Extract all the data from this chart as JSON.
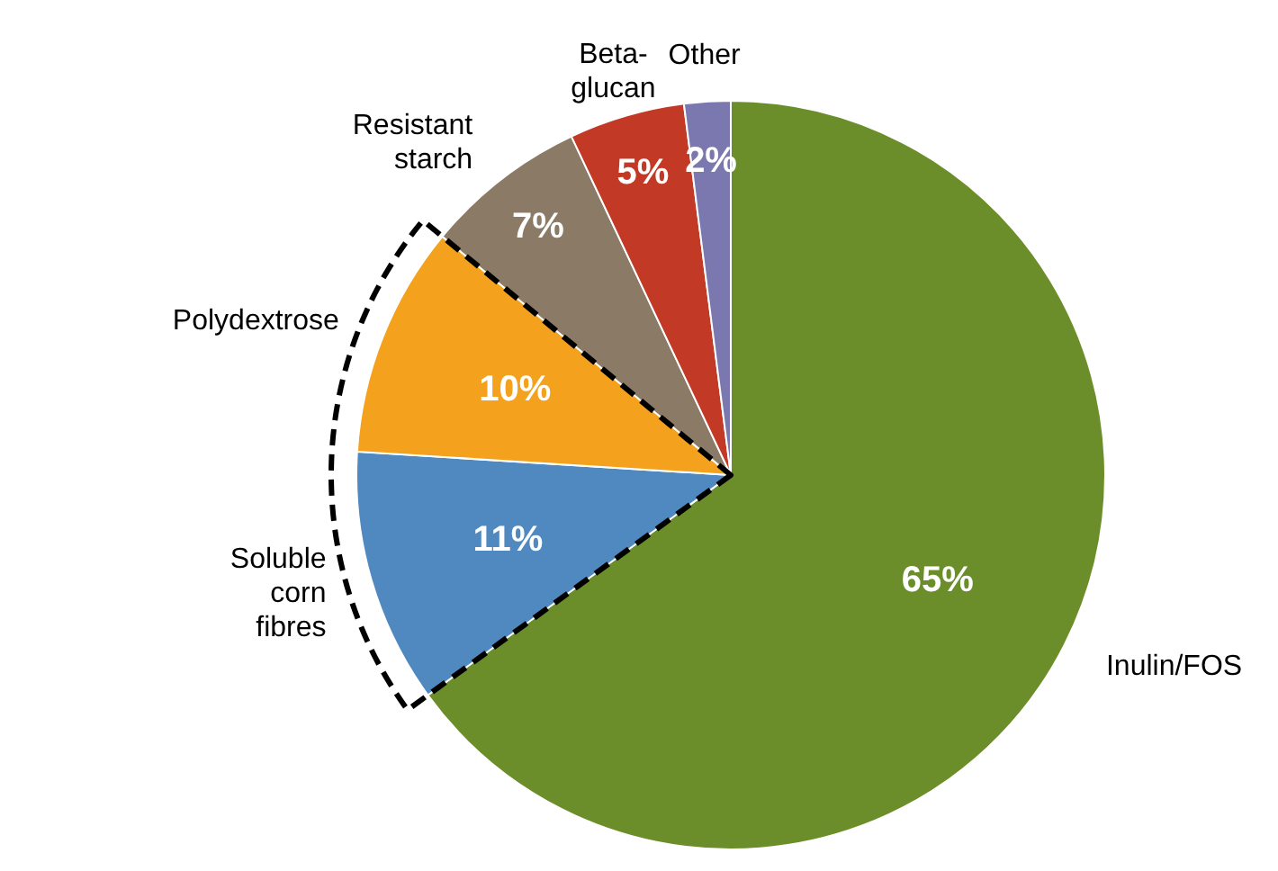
{
  "chart_data": {
    "type": "pie",
    "categories": [
      "Inulin/FOS",
      "Soluble corn fibres",
      "Polydextrose",
      "Resistant starch",
      "Beta-glucan",
      "Other"
    ],
    "values": [
      65,
      11,
      10,
      7,
      5,
      2
    ],
    "value_labels": [
      "65%",
      "11%",
      "10%",
      "7%",
      "5%",
      "2%"
    ],
    "colors": [
      "#6b8e2a",
      "#4f89c0",
      "#f4a21e",
      "#8b7b66",
      "#c23a26",
      "#7b78b0"
    ]
  }
}
